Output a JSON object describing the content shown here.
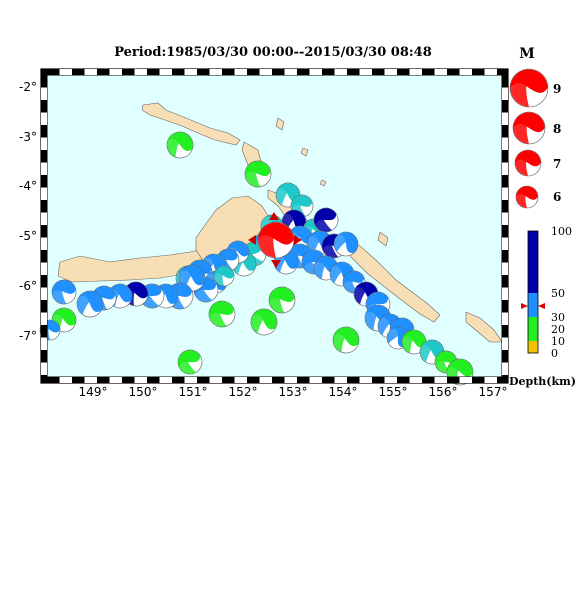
{
  "title": "Period:1985/03/30 00:00--2015/03/30 08:48",
  "lon_ticks": [
    "149°",
    "150°",
    "151°",
    "152°",
    "153°",
    "154°",
    "155°",
    "156°",
    "157°"
  ],
  "lat_ticks": [
    "-2°",
    "-3°",
    "-4°",
    "-5°",
    "-6°",
    "-7°"
  ],
  "magnitude_legend": {
    "title": "M",
    "entries": [
      "9",
      "8",
      "7",
      "6"
    ]
  },
  "depth_legend": {
    "title": "Depth(km)",
    "ticks": [
      "100",
      "50",
      "30",
      "20",
      "10",
      "0"
    ],
    "marker_depth_km": 40
  },
  "colors": {
    "ocean": "#e0ffff",
    "land": "#f8deb4",
    "event_red": "#ff0000",
    "depth_0_10": "#f2c200",
    "depth_10_30": "#22ee22",
    "depth_30_50": "#1fc8c8",
    "depth_50_70": "#1e90ff",
    "depth_70_100": "#0000aa"
  },
  "main_event": {
    "lon": 152.5,
    "lat": -5.2,
    "depth_band": "shallow",
    "color": "red"
  }
}
